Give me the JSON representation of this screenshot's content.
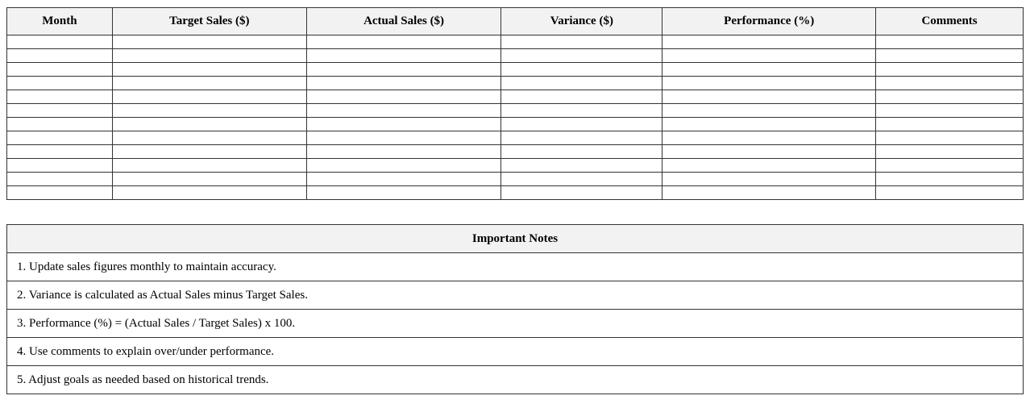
{
  "sales_table": {
    "columns": [
      "Month",
      "Target Sales ($)",
      "Actual Sales ($)",
      "Variance ($)",
      "Performance (%)",
      "Comments"
    ],
    "empty_row_count": 12
  },
  "notes": {
    "title": "Important Notes",
    "items": [
      "1. Update sales figures monthly to maintain accuracy.",
      "2. Variance is calculated as Actual Sales minus Target Sales.",
      "3. Performance (%) = (Actual Sales / Target Sales) x 100.",
      "4. Use comments to explain over/under performance.",
      "5. Adjust goals as needed based on historical trends."
    ]
  }
}
